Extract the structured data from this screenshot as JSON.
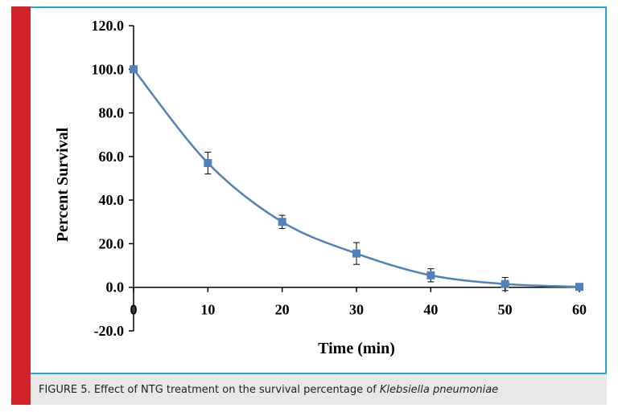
{
  "chart_data": {
    "type": "line",
    "xlabel": "Time (min)",
    "ylabel": "Percent Survival",
    "x": [
      0,
      10,
      20,
      30,
      40,
      50,
      60
    ],
    "xticks": [
      "0",
      "10",
      "20",
      "30",
      "40",
      "50",
      "60"
    ],
    "yticks": [
      120.0,
      100.0,
      80.0,
      60.0,
      40.0,
      20.0,
      0.0,
      -20.0
    ],
    "ytick_labels": [
      "120.0",
      "100.0",
      "80.0",
      "60.0",
      "40.0",
      "20.0",
      "0.0",
      "-20.0"
    ],
    "ylim": [
      -20,
      120
    ],
    "xlim": [
      0,
      60
    ],
    "series": [
      {
        "values": [
          100.0,
          57.0,
          30.0,
          15.5,
          5.5,
          1.5,
          0.2
        ],
        "error": [
          0,
          5,
          3,
          5,
          3,
          3,
          0
        ],
        "color": "#4f81bd",
        "marker": "square",
        "smooth": true
      }
    ],
    "grid": false
  },
  "caption": {
    "prefix": "FIGURE 5. Effect of NTG treatment on the survival percentage of ",
    "species": "Klebsiella pneumoniae"
  },
  "colors": {
    "border": "#29a3db",
    "side_bar": "#d0232a",
    "caption_bg": "#e7e8e8",
    "series": "#4f81bd"
  }
}
